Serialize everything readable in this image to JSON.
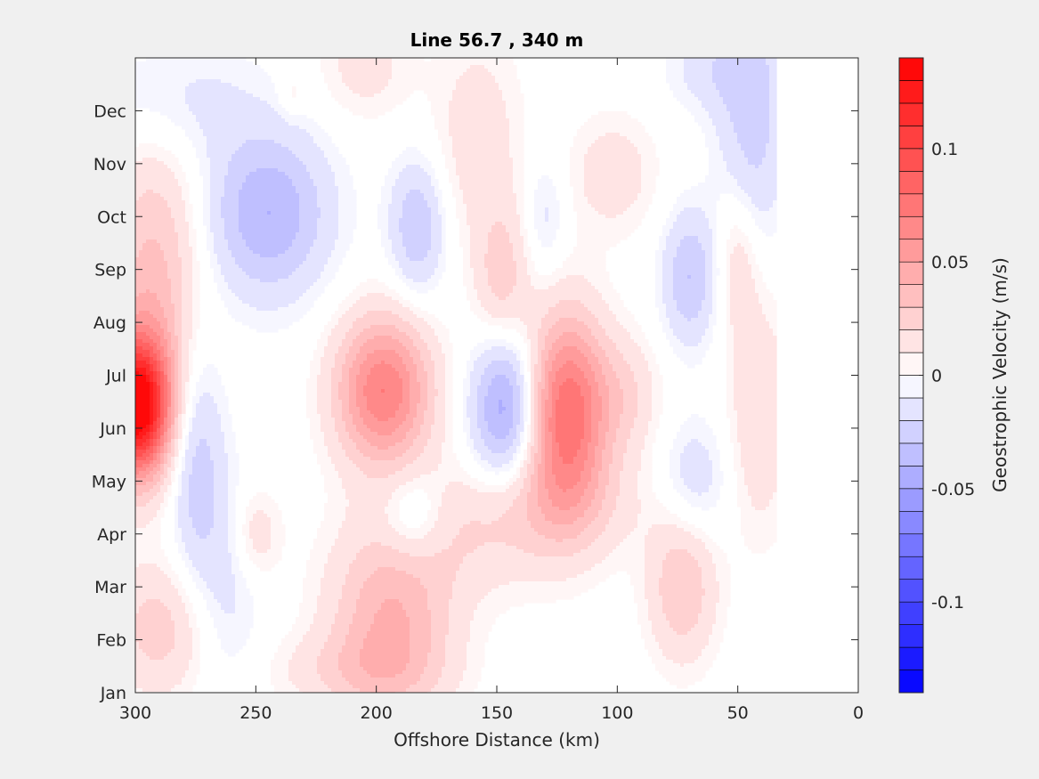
{
  "chart_data": {
    "type": "heatmap",
    "subtype": "filled-contour",
    "title": "Line 56.7 , 340 m",
    "xlabel": "Offshore Distance (km)",
    "ylabel": "",
    "xlim": [
      300,
      0
    ],
    "x_reversed": true,
    "x_ticks": [
      "300",
      "250",
      "200",
      "150",
      "100",
      "50",
      "0"
    ],
    "y_ticks": [
      "Jan",
      "Feb",
      "Mar",
      "Apr",
      "May",
      "Jun",
      "Jul",
      "Aug",
      "Sep",
      "Oct",
      "Nov",
      "Dec"
    ],
    "grid": false,
    "data_extent_km": [
      34,
      300
    ],
    "colorbar": {
      "label": "Geostrophic Velocity (m/s)",
      "range": [
        -0.14,
        0.14
      ],
      "levels": 28,
      "ticks": [
        "-0.1",
        "-0.05",
        "0",
        "0.05",
        "0.1"
      ],
      "tick_values": [
        -0.1,
        -0.05,
        0,
        0.05,
        0.1
      ],
      "colors": {
        "min": "#0000ff",
        "zero": "#ffffff",
        "max": "#ff0000"
      }
    },
    "features": [
      {
        "sign": "positive",
        "x_km": 300,
        "month": 5.4,
        "peak": 0.14
      },
      {
        "sign": "positive",
        "x_km": 290,
        "month": 7.6,
        "peak": 0.035
      },
      {
        "sign": "negative",
        "x_km": 275,
        "month": 4.5,
        "peak": -0.028
      },
      {
        "sign": "negative",
        "x_km": 245,
        "month": 9.05,
        "peak": -0.04
      },
      {
        "sign": "positive",
        "x_km": 197,
        "month": 5.7,
        "peak": 0.07
      },
      {
        "sign": "negative",
        "x_km": 146,
        "month": 5.4,
        "peak": -0.05
      },
      {
        "sign": "positive",
        "x_km": 121,
        "month": 5.3,
        "peak": 0.08
      },
      {
        "sign": "positive",
        "x_km": 194,
        "month": 1.3,
        "peak": 0.04
      },
      {
        "sign": "positive",
        "x_km": 148,
        "month": 7.8,
        "peak": 0.025
      },
      {
        "sign": "negative",
        "x_km": 183,
        "month": 8.8,
        "peak": -0.03
      },
      {
        "sign": "negative",
        "x_km": 70,
        "month": 7.85,
        "peak": -0.03
      },
      {
        "sign": "positive",
        "x_km": 73,
        "month": 2.0,
        "peak": 0.03
      },
      {
        "sign": "positive",
        "x_km": 41,
        "month": 5.3,
        "peak": 0.02
      },
      {
        "sign": "negative",
        "x_km": 44,
        "month": 10.7,
        "peak": -0.025
      },
      {
        "sign": "positive",
        "x_km": 102,
        "month": 9.8,
        "peak": 0.015
      }
    ]
  }
}
